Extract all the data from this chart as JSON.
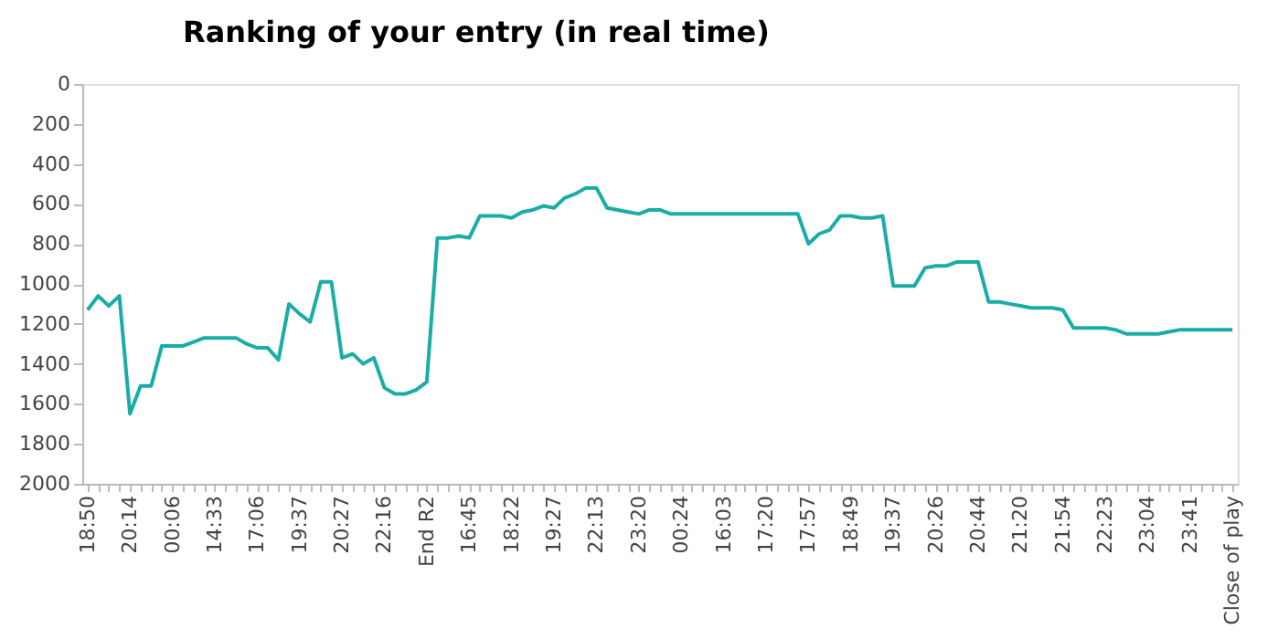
{
  "chart_data": {
    "type": "line",
    "title": "Ranking of your entry (in real time)",
    "categories": [
      "18:50",
      null,
      null,
      null,
      "20:14",
      null,
      null,
      null,
      "00:06",
      null,
      null,
      null,
      "14:33",
      null,
      null,
      null,
      "17:06",
      null,
      null,
      null,
      "19:37",
      null,
      null,
      null,
      "20:27",
      null,
      null,
      null,
      "22:16",
      null,
      null,
      null,
      "End R2",
      null,
      null,
      null,
      "16:45",
      null,
      null,
      null,
      "18:22",
      null,
      null,
      null,
      "19:27",
      null,
      null,
      null,
      "22:13",
      null,
      null,
      null,
      "23:20",
      null,
      null,
      null,
      "00:24",
      null,
      null,
      null,
      "16:03",
      null,
      null,
      null,
      "17:20",
      null,
      null,
      null,
      "17:57",
      null,
      null,
      null,
      "18:49",
      null,
      null,
      null,
      "19:37",
      null,
      null,
      null,
      "20:26",
      null,
      null,
      null,
      "20:44",
      null,
      null,
      null,
      "21:20",
      null,
      null,
      null,
      "21:54",
      null,
      null,
      null,
      "22:23",
      null,
      null,
      null,
      "23:04",
      null,
      null,
      null,
      "23:41",
      null,
      null,
      null,
      "Close of play"
    ],
    "series": [
      {
        "color": "#1aada8",
        "values": [
          1130,
          1060,
          1110,
          1060,
          1650,
          1510,
          1510,
          1310,
          1310,
          1310,
          1290,
          1270,
          1270,
          1270,
          1270,
          1300,
          1320,
          1320,
          1380,
          1100,
          1150,
          1190,
          990,
          990,
          1370,
          1350,
          1400,
          1370,
          1520,
          1550,
          1550,
          1530,
          1490,
          770,
          770,
          760,
          770,
          660,
          660,
          660,
          670,
          640,
          630,
          610,
          620,
          570,
          550,
          520,
          520,
          620,
          630,
          640,
          650,
          630,
          630,
          650,
          650,
          650,
          650,
          650,
          650,
          650,
          650,
          650,
          650,
          650,
          650,
          650,
          800,
          750,
          730,
          660,
          660,
          670,
          670,
          660,
          1010,
          1010,
          1010,
          920,
          910,
          910,
          890,
          890,
          890,
          1090,
          1090,
          1100,
          1110,
          1120,
          1120,
          1120,
          1130,
          1220,
          1220,
          1220,
          1220,
          1230,
          1250,
          1250,
          1250,
          1250,
          1240,
          1230,
          1230,
          1230,
          1230,
          1230,
          1230
        ]
      }
    ],
    "ylim": [
      2000,
      0
    ],
    "yticks": [
      0,
      200,
      400,
      600,
      800,
      1000,
      1200,
      1400,
      1600,
      1800,
      2000
    ],
    "grid": false
  }
}
